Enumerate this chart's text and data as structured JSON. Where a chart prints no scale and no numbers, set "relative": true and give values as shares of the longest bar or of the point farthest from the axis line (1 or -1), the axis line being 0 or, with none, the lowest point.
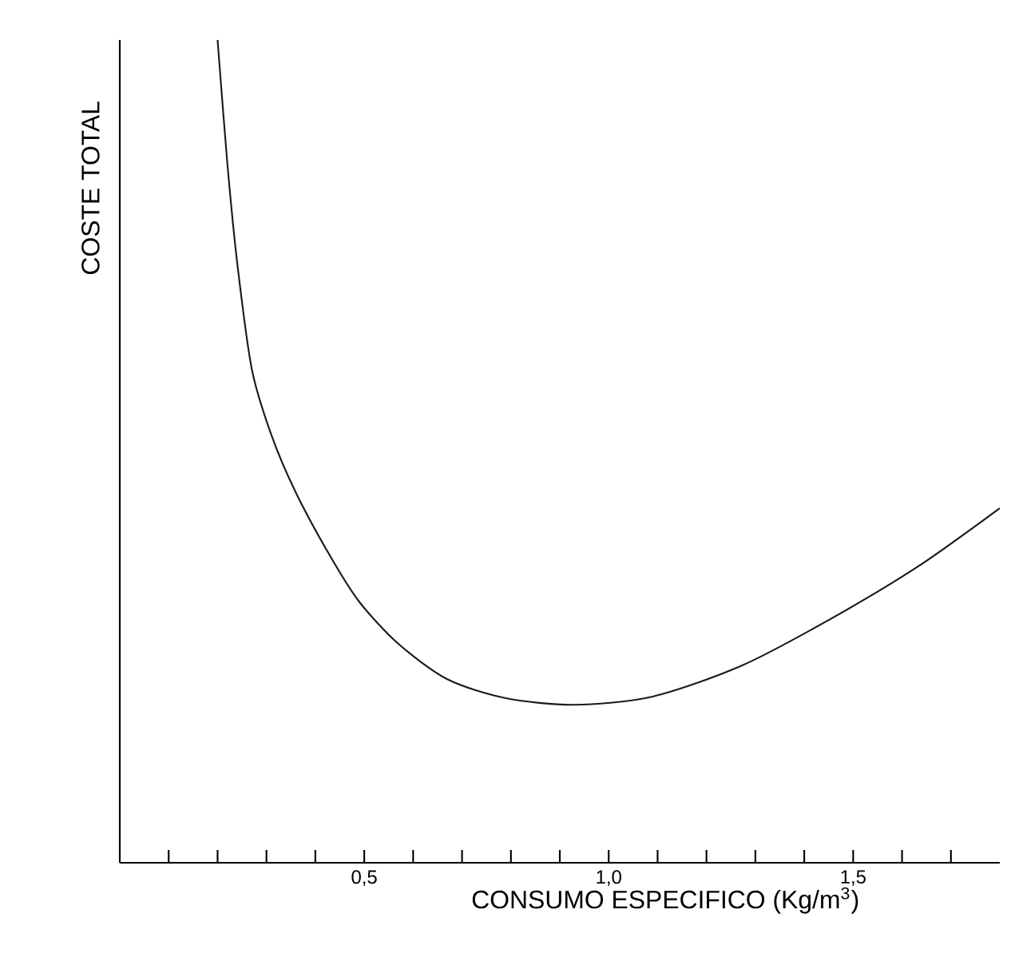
{
  "chart_data": {
    "type": "line",
    "relative": true,
    "xlabel": "CONSUMO ESPECIFICO (Kg/m$^{3}$)",
    "ylabel": "COSTE TOTAL",
    "xlim": [
      0,
      1.8
    ],
    "xticks": [
      {
        "value": 0.1,
        "label": null
      },
      {
        "value": 0.2,
        "label": null
      },
      {
        "value": 0.3,
        "label": null
      },
      {
        "value": 0.4,
        "label": null
      },
      {
        "value": 0.5,
        "label": "0,5"
      },
      {
        "value": 0.6,
        "label": null
      },
      {
        "value": 0.7,
        "label": null
      },
      {
        "value": 0.8,
        "label": null
      },
      {
        "value": 0.9,
        "label": null
      },
      {
        "value": 1.0,
        "label": "1,0"
      },
      {
        "value": 1.1,
        "label": null
      },
      {
        "value": 1.2,
        "label": null
      },
      {
        "value": 1.3,
        "label": null
      },
      {
        "value": 1.4,
        "label": null
      },
      {
        "value": 1.5,
        "label": "1,5"
      },
      {
        "value": 1.6,
        "label": null
      },
      {
        "value": 1.7,
        "label": null
      }
    ],
    "x": [
      0.2,
      0.22,
      0.24,
      0.27,
      0.31,
      0.36,
      0.43,
      0.49,
      0.57,
      0.67,
      0.79,
      0.93,
      1.09,
      1.27,
      1.45,
      1.63,
      1.8
    ],
    "series": [
      {
        "color": "#1a1a1a",
        "values": [
          1.0,
          0.85,
          0.73,
          0.6,
          0.52,
          0.45,
          0.373,
          0.317,
          0.266,
          0.223,
          0.2,
          0.192,
          0.202,
          0.239,
          0.295,
          0.359,
          0.431
        ]
      }
    ]
  }
}
